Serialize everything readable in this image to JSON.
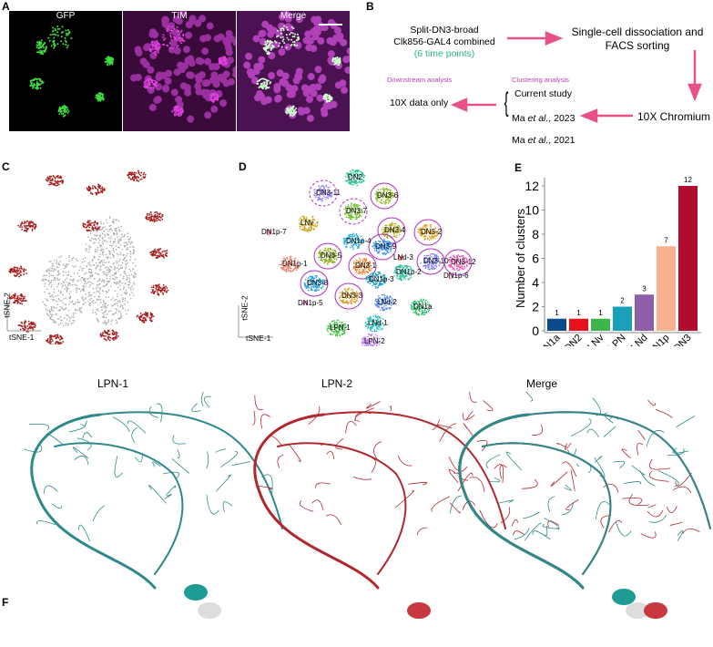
{
  "panels": {
    "A": "A",
    "B": "B",
    "C": "C",
    "D": "D",
    "E": "E",
    "F": "F"
  },
  "panelA": {
    "images": [
      "GFP",
      "TIM",
      "Merge"
    ]
  },
  "panelB": {
    "line1": "Split-DN3-broad",
    "line2": "Clk856-GAL4 combined",
    "line3": "(6 time points)",
    "step2a": "Single-cell dissociation and",
    "step2b": "FACS sorting",
    "step3": "10X Chromium",
    "clustering_header": "Clustering analysis",
    "downstream_header": "Downstream analysis",
    "ref1": "Current study",
    "ref2_a": "Ma ",
    "ref2_i": "et al.",
    "ref2_b": ", 2023",
    "ref3_a": "Ma ",
    "ref3_i": "et al.",
    "ref3_b": ", 2021",
    "output": "10X data only",
    "colors": {
      "arrow": "#e8508a",
      "green": "#2bb58a",
      "header": "#c040b0"
    }
  },
  "panelC": {
    "xlabel": "tSNE-1",
    "ylabel": "tSNE-2"
  },
  "panelD": {
    "xlabel": "tSNE-1",
    "ylabel": "tSNE-2",
    "clusters": [
      "DN2",
      "DN3-11",
      "DN3-7",
      "DN3-6",
      "LNv",
      "DN3-4",
      "DN3-2",
      "DN1p-4",
      "DN1p-7",
      "DN3-5",
      "DN3-9",
      "DN1p-1",
      "DN3-1",
      "LNd-3",
      "DN3-10",
      "DN3-12",
      "DN3-8",
      "DN1p-3",
      "DN1p-2",
      "DN1p-6",
      "DN1p-5",
      "DN3-3",
      "LNd-2",
      "DN1a",
      "LNd-1",
      "LPN-1",
      "LPN-2"
    ]
  },
  "chart_data": {
    "type": "bar",
    "categories": [
      "DN1a",
      "DN2",
      "LNv",
      "LPN",
      "LNd",
      "DN1p",
      "DN3"
    ],
    "values": [
      1,
      1,
      1,
      2,
      3,
      7,
      12
    ],
    "colors": [
      "#0d4a8c",
      "#e8121c",
      "#3cb54a",
      "#1aa0b8",
      "#8e5ea8",
      "#f9b08e",
      "#b00c30"
    ],
    "ylabel": "Number of clusters",
    "yticks": [
      0,
      2,
      4,
      6,
      8,
      10,
      12
    ],
    "ylim": [
      0,
      12.5
    ]
  },
  "panelF": {
    "titles": [
      "LPN-1",
      "LPN-2",
      "Merge"
    ]
  }
}
